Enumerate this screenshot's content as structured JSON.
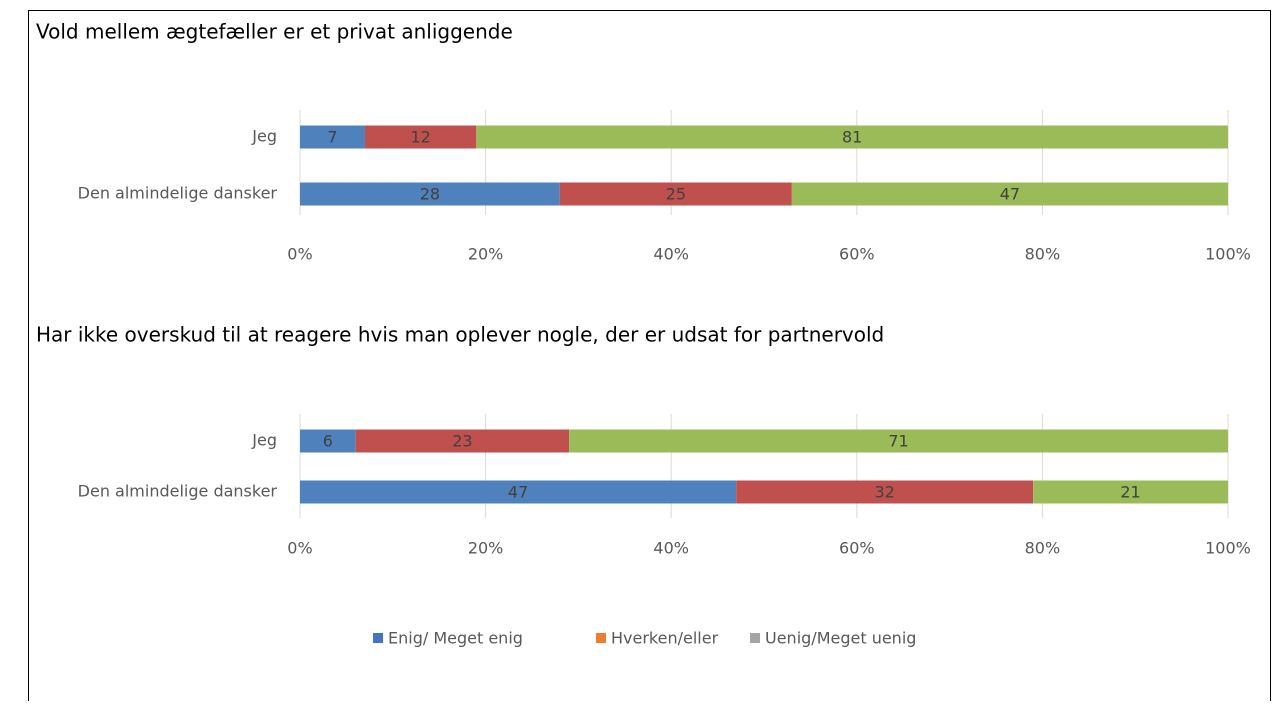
{
  "chart_data": [
    {
      "type": "stacked-barh",
      "title": "Vold mellem ægtefæller er et privat anliggende",
      "categories": [
        "Jeg",
        "Den almindelige dansker"
      ],
      "series": [
        {
          "name": "Enig/ Meget enig",
          "color": "#4f81bd",
          "legend_color": "#4472c4",
          "values": [
            7,
            28
          ]
        },
        {
          "name": "Hverken/eller",
          "color": "#c0504d",
          "legend_color": "#ed7d31",
          "values": [
            12,
            25
          ]
        },
        {
          "name": "Uenig/Meget uenig",
          "color": "#9bbb59",
          "legend_color": "#a5a5a5",
          "values": [
            81,
            47
          ]
        }
      ],
      "xlim": [
        0,
        100
      ],
      "xticks": [
        {
          "value": 0,
          "label": "0%"
        },
        {
          "value": 20,
          "label": "20%"
        },
        {
          "value": 40,
          "label": "40%"
        },
        {
          "value": 60,
          "label": "60%"
        },
        {
          "value": 80,
          "label": "80%"
        },
        {
          "value": 100,
          "label": "100%"
        }
      ],
      "grid": true
    },
    {
      "type": "stacked-barh",
      "title": "Har ikke overskud til at reagere hvis man oplever nogle, der er udsat for partnervold",
      "categories": [
        "Jeg",
        "Den almindelige dansker"
      ],
      "series": [
        {
          "color": "#4f81bd",
          "values": [
            6,
            47
          ]
        },
        {
          "color": "#c0504d",
          "values": [
            23,
            32
          ]
        },
        {
          "color": "#9bbb59",
          "values": [
            71,
            21
          ]
        }
      ],
      "xlim": [
        0,
        100
      ],
      "xticks": [
        {
          "value": 0,
          "label": "0%"
        },
        {
          "value": 20,
          "label": "20%"
        },
        {
          "value": 40,
          "label": "40%"
        },
        {
          "value": 60,
          "label": "60%"
        },
        {
          "value": 80,
          "label": "80%"
        },
        {
          "value": 100,
          "label": "100%"
        }
      ],
      "grid": true
    }
  ]
}
